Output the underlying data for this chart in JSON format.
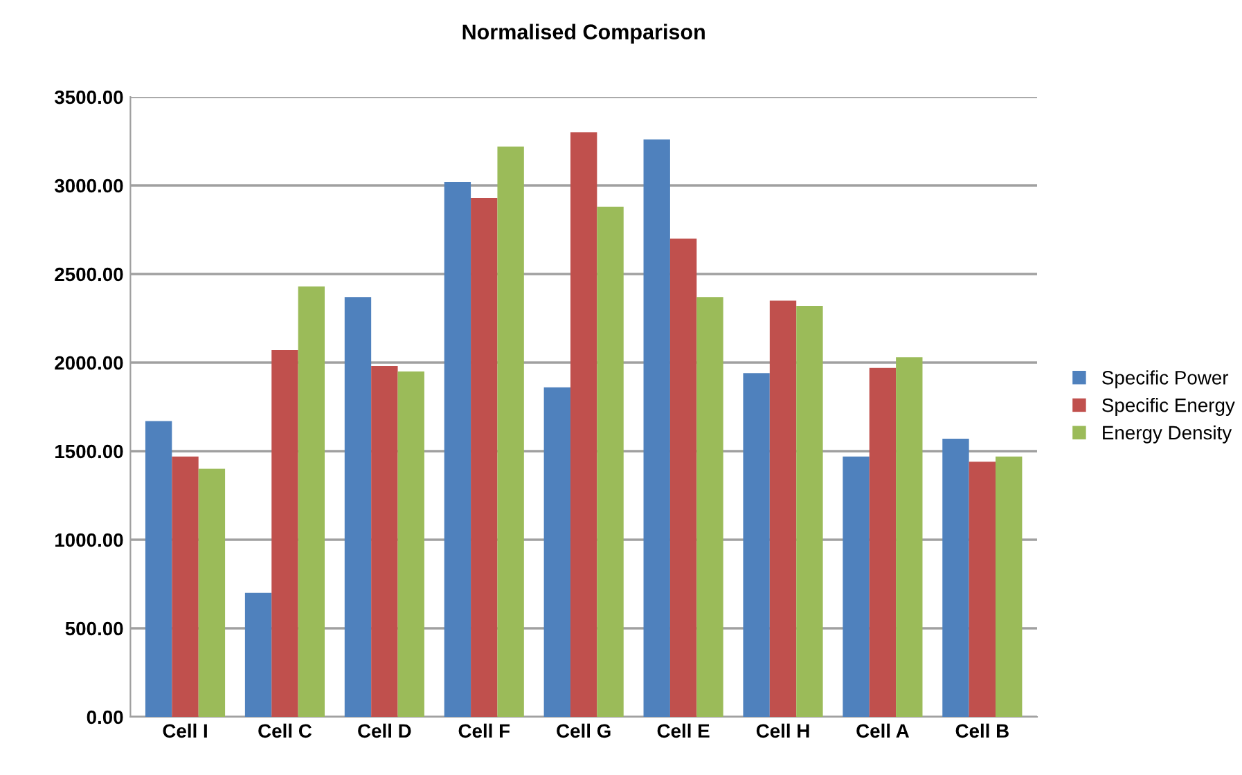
{
  "chart_data": {
    "type": "bar",
    "title": "Normalised Comparison",
    "categories": [
      "Cell I",
      "Cell C",
      "Cell D",
      "Cell F",
      "Cell G",
      "Cell E",
      "Cell H",
      "Cell A",
      "Cell B"
    ],
    "series": [
      {
        "name": "Specific Power",
        "color": "#4f81bd",
        "values": [
          1670,
          700,
          2370,
          3020,
          1860,
          3260,
          1940,
          1470,
          1570
        ]
      },
      {
        "name": "Specific Energy",
        "color": "#c0504d",
        "values": [
          1470,
          2070,
          1980,
          2930,
          3300,
          2700,
          2350,
          1970,
          1440
        ]
      },
      {
        "name": "Energy Density",
        "color": "#9bbb59",
        "values": [
          1400,
          2430,
          1950,
          3220,
          2880,
          2370,
          2320,
          2030,
          1470
        ]
      }
    ],
    "ylim": [
      0,
      3500
    ],
    "yticks": [
      {
        "value": 0,
        "label": "0.00"
      },
      {
        "value": 500,
        "label": "500.00"
      },
      {
        "value": 1000,
        "label": "1000.00"
      },
      {
        "value": 1500,
        "label": "1500.00"
      },
      {
        "value": 2000,
        "label": "2000.00"
      },
      {
        "value": 2500,
        "label": "2500.00"
      },
      {
        "value": 3000,
        "label": "3000.00"
      },
      {
        "value": 3500,
        "label": "3500.00"
      }
    ],
    "grid": "y",
    "legend": "right"
  }
}
